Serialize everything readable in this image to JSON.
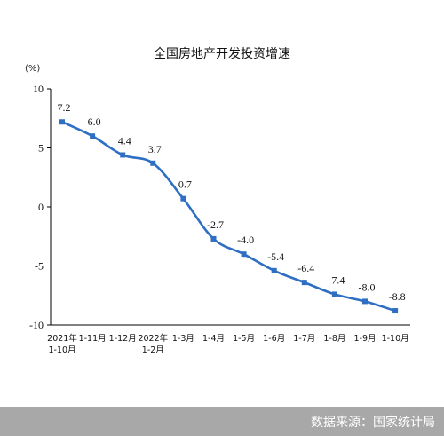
{
  "colors": {
    "line": "#2e6fc4",
    "marker": "#2e6fc4",
    "footer_bg": "#a8a8a8"
  },
  "footer": {
    "source": "数据来源：国家统计局"
  },
  "chart_data": {
    "type": "line",
    "title": "全国房地产开发投资增速",
    "unit_label": "(%)",
    "categories": [
      [
        "2021年",
        "1-10月"
      ],
      [
        "1-11月"
      ],
      [
        "1-12月"
      ],
      [
        "2022年",
        "1-2月"
      ],
      [
        "1-3月"
      ],
      [
        "1-4月"
      ],
      [
        "1-5月"
      ],
      [
        "1-6月"
      ],
      [
        "1-7月"
      ],
      [
        "1-8月"
      ],
      [
        "1-9月"
      ],
      [
        "1-10月"
      ]
    ],
    "values": [
      7.2,
      6.0,
      4.4,
      3.7,
      0.7,
      -2.7,
      -4.0,
      -5.4,
      -6.4,
      -7.4,
      -8.0,
      -8.8
    ],
    "data_labels": [
      "7.2",
      "6.0",
      "4.4",
      "3.7",
      "0.7",
      "-2.7",
      "-4.0",
      "-5.4",
      "-6.4",
      "-7.4",
      "-8.0",
      "-8.8"
    ],
    "y_ticks": [
      "10",
      "5",
      "0",
      "-5",
      "-10"
    ],
    "y_tick_values": [
      10,
      5,
      0,
      -5,
      -10
    ],
    "ylim": [
      -10,
      10
    ],
    "grid": false,
    "smooth": true
  }
}
